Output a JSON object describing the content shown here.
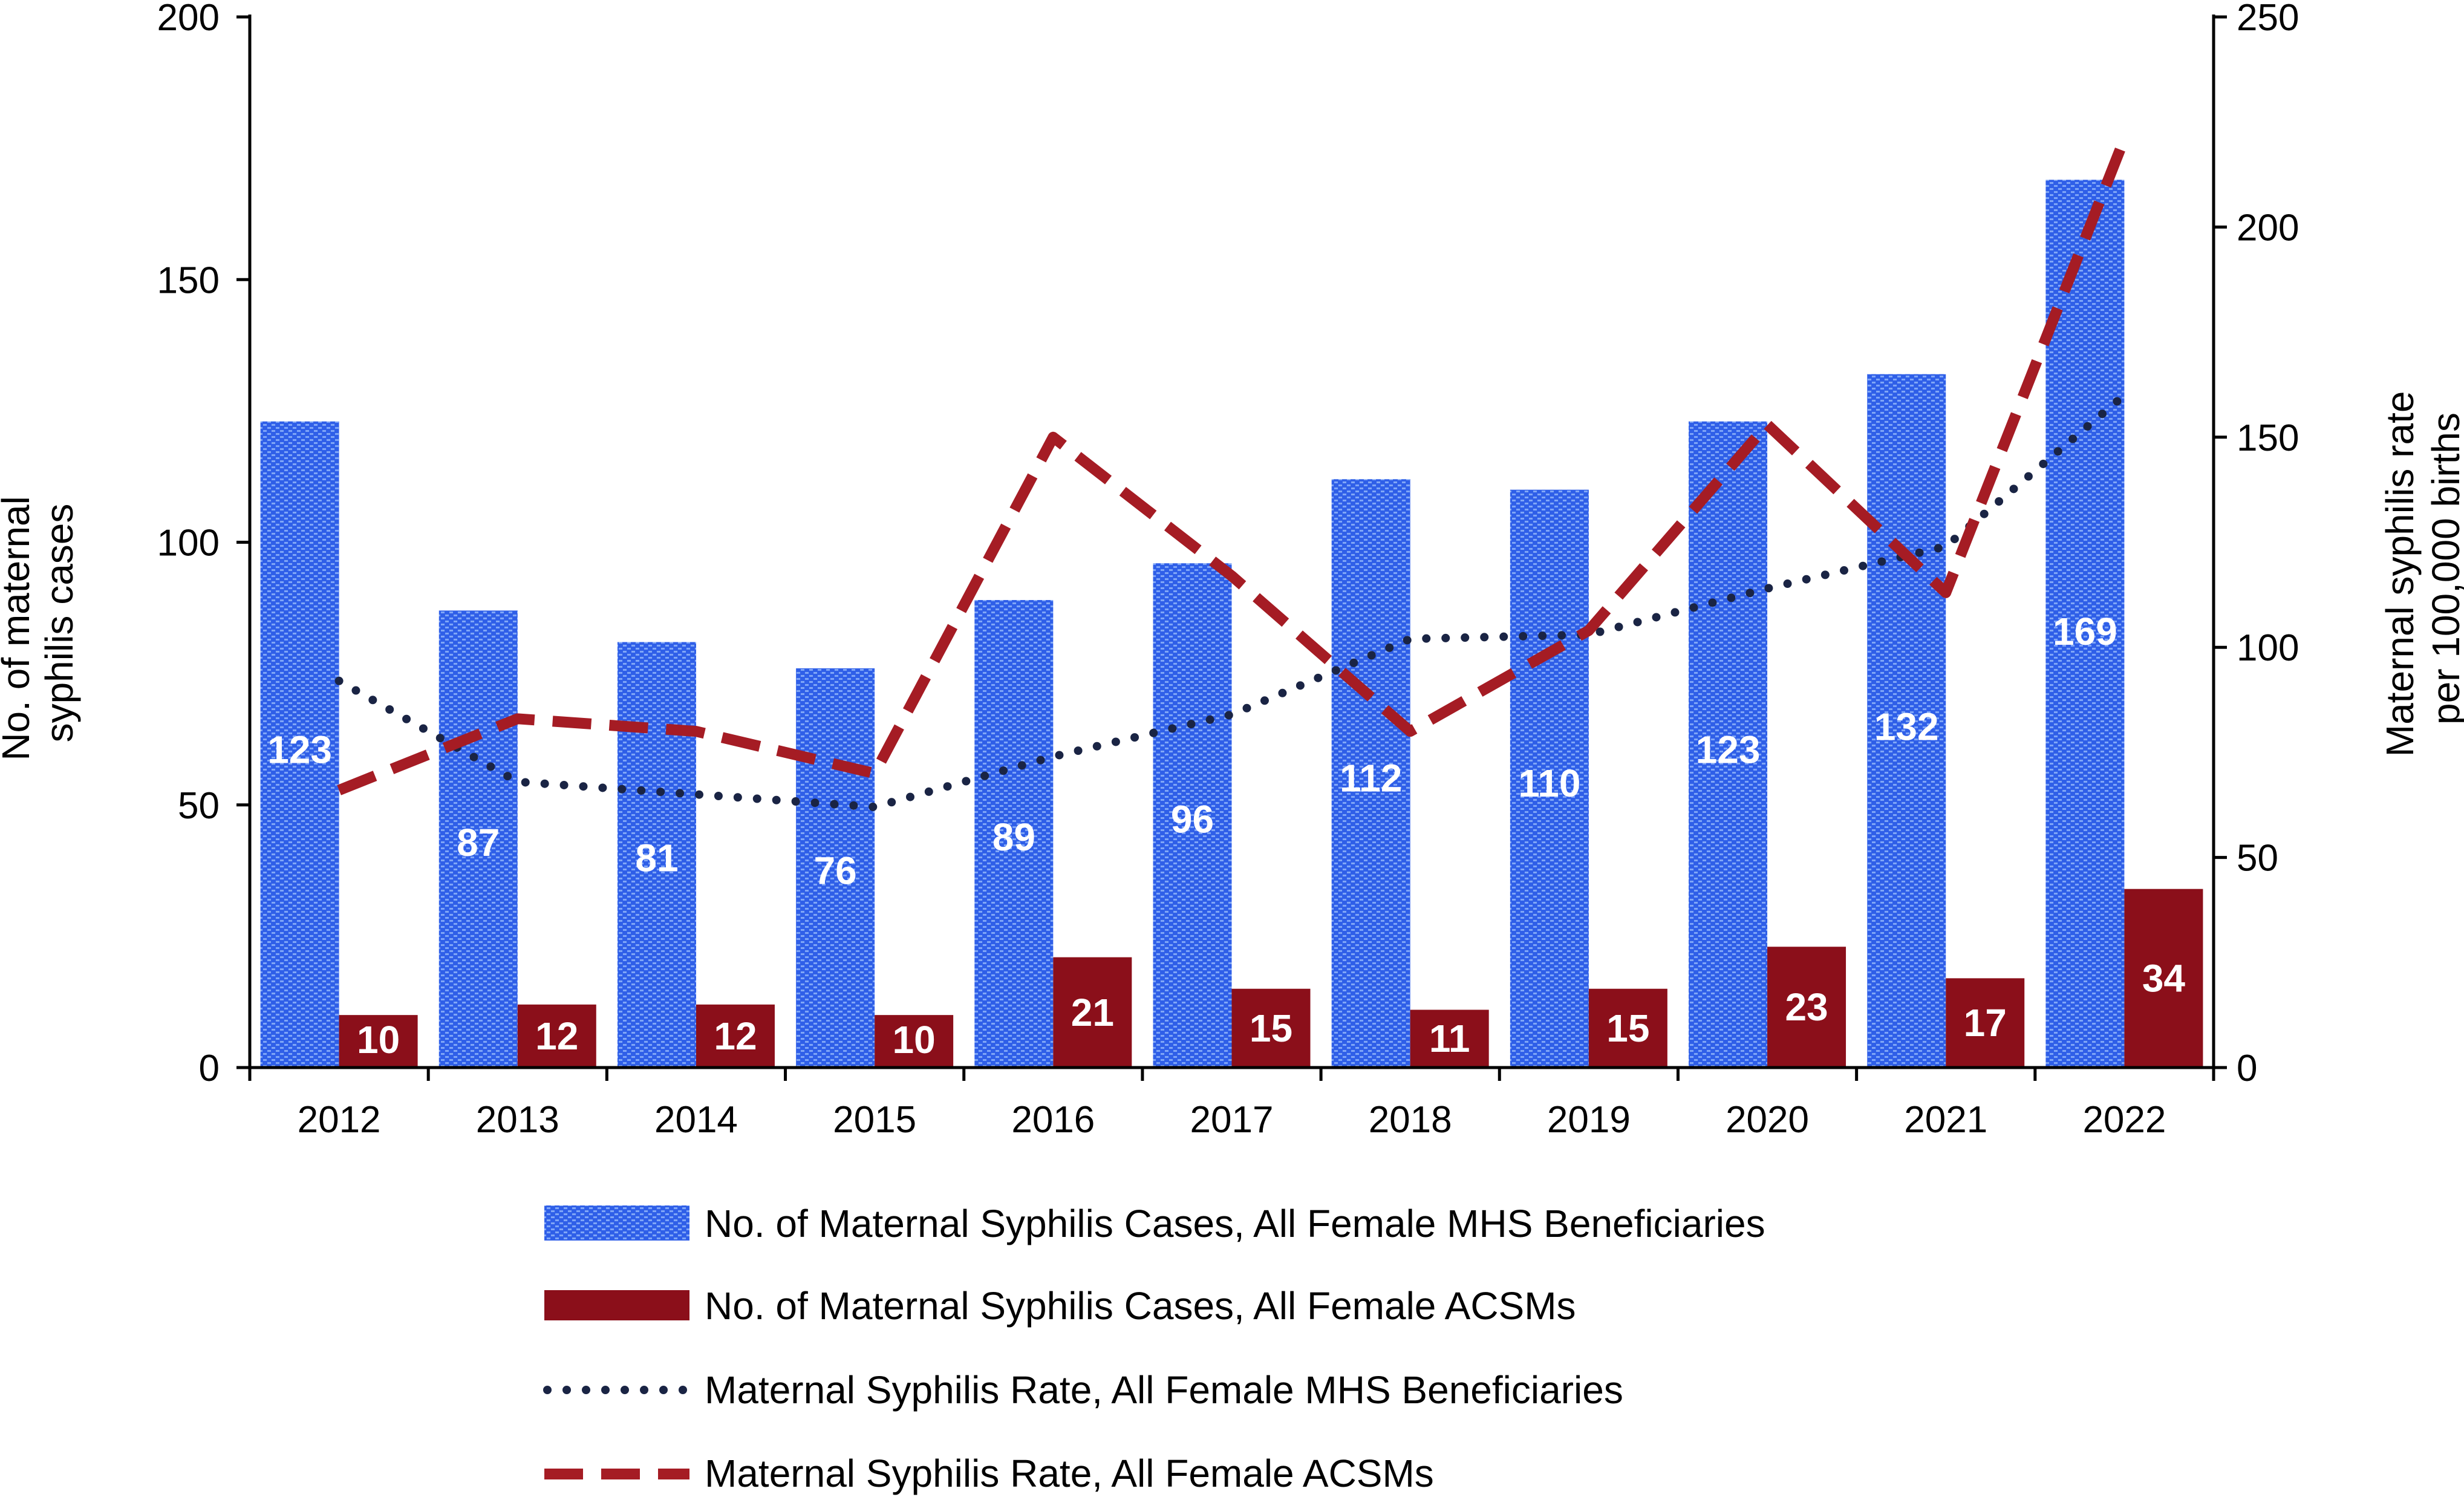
{
  "chart_data": {
    "type": "bar+line",
    "categories": [
      "2012",
      "2013",
      "2014",
      "2015",
      "2016",
      "2017",
      "2018",
      "2019",
      "2020",
      "2021",
      "2022"
    ],
    "bar_series": [
      {
        "name": "No. of Maternal Syphilis Cases, All Female MHS Beneficiaries",
        "values": [
          123,
          87,
          81,
          76,
          89,
          96,
          112,
          110,
          123,
          132,
          169
        ],
        "color": "#3a6fe0",
        "axis": "left"
      },
      {
        "name": "No. of Maternal Syphilis Cases, All Female ACSMs",
        "values": [
          10,
          12,
          12,
          10,
          21,
          15,
          11,
          15,
          23,
          17,
          34
        ],
        "color": "#8b0f1a",
        "axis": "left"
      }
    ],
    "line_series": [
      {
        "name": "Maternal Syphilis Rate, All Female MHS Beneficiaries",
        "values": [
          92,
          68,
          65,
          62,
          74,
          84,
          102,
          103,
          114,
          124,
          160
        ],
        "color": "#1a2444",
        "style": "dotted",
        "axis": "right"
      },
      {
        "name": "Maternal Syphilis Rate, All Female ACSMs",
        "values": [
          66,
          83,
          80,
          70,
          150,
          117,
          80,
          104,
          153,
          113,
          221
        ],
        "color": "#a51c24",
        "style": "dashed",
        "axis": "right"
      }
    ],
    "left_axis": {
      "label_line1": "No. of maternal",
      "label_line2": "syphilis cases",
      "ylim": [
        0,
        200
      ],
      "ticks": [
        "0",
        "50",
        "100",
        "150",
        "200"
      ]
    },
    "right_axis": {
      "label_line1": "Maternal syphilis rate",
      "label_line2": "per 100,000 births",
      "ylim": [
        0,
        250
      ],
      "ticks": [
        "0",
        "50",
        "100",
        "150",
        "200",
        "250"
      ]
    },
    "bar_labels_1": [
      "123",
      "87",
      "81",
      "76",
      "89",
      "96",
      "112",
      "110",
      "123",
      "132",
      "169"
    ],
    "bar_labels_2": [
      "10",
      "12",
      "12",
      "10",
      "21",
      "15",
      "11",
      "15",
      "23",
      "17",
      "34"
    ],
    "legend": [
      "No. of Maternal Syphilis Cases, All Female MHS Beneficiaries",
      "No. of Maternal Syphilis Cases, All Female ACSMs",
      "Maternal Syphilis Rate, All Female MHS Beneficiaries",
      "Maternal Syphilis Rate, All Female ACSMs"
    ]
  }
}
